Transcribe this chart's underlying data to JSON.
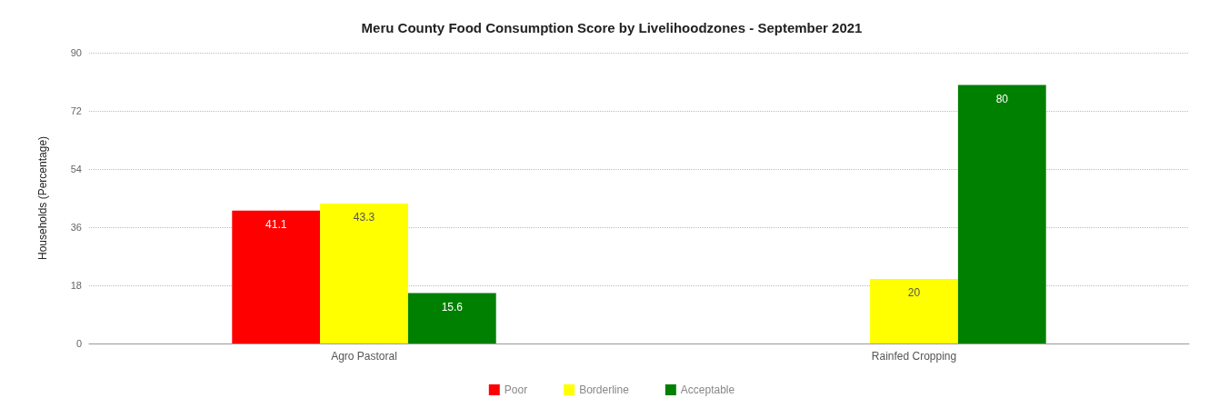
{
  "chart_data": {
    "type": "bar",
    "title": "Meru County Food Consumption Score by Livelihoodzones - September 2021",
    "ylabel": "Households (Percentage)",
    "categories": [
      "Agro Pastoral",
      "Rainfed Cropping"
    ],
    "series": [
      {
        "name": "Poor",
        "color": "#ff0000",
        "values": [
          41.1,
          null
        ]
      },
      {
        "name": "Borderline",
        "color": "#ffff00",
        "values": [
          43.3,
          20
        ]
      },
      {
        "name": "Acceptable",
        "color": "#008000",
        "values": [
          15.6,
          80
        ]
      }
    ],
    "ylim": [
      0,
      90
    ],
    "yticks": [
      0,
      18,
      36,
      54,
      72,
      90
    ],
    "grid": "y",
    "legend": "bottom",
    "data_labels": true
  }
}
